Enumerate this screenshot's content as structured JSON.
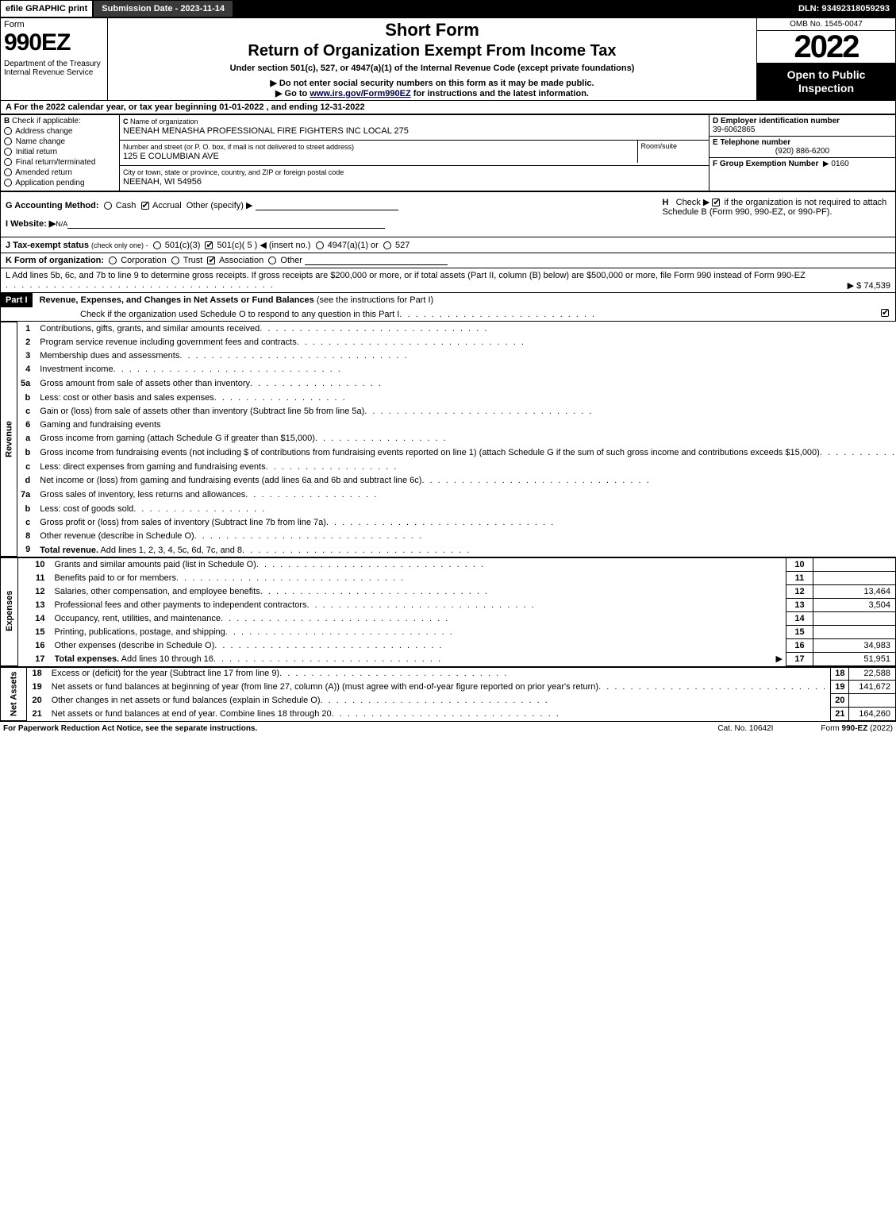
{
  "top": {
    "efile": "efile GRAPHIC print",
    "submission_label": "Submission Date - 2023-11-14",
    "dln": "DLN: 93492318059293"
  },
  "header": {
    "form_word": "Form",
    "form_num": "990EZ",
    "dept": "Department of the Treasury\nInternal Revenue Service",
    "short": "Short Form",
    "title": "Return of Organization Exempt From Income Tax",
    "subtitle1": "Under section 501(c), 527, or 4947(a)(1) of the Internal Revenue Code (except private foundations)",
    "subtitle2": "▶ Do not enter social security numbers on this form as it may be made public.",
    "subtitle3_pre": "▶ Go to ",
    "subtitle3_link": "www.irs.gov/Form990EZ",
    "subtitle3_post": " for instructions and the latest information.",
    "omb": "OMB No. 1545-0047",
    "year": "2022",
    "open": "Open to Public Inspection"
  },
  "rowA": "A  For the 2022 calendar year, or tax year beginning 01-01-2022  , and ending 12-31-2022",
  "secB": {
    "label": "B",
    "check_label": "Check if applicable:",
    "items": [
      "Address change",
      "Name change",
      "Initial return",
      "Final return/terminated",
      "Amended return",
      "Application pending"
    ]
  },
  "secC": {
    "c_label": "C",
    "name_lbl": "Name of organization",
    "name": "NEENAH MENASHA PROFESSIONAL FIRE FIGHTERS INC LOCAL 275",
    "street_lbl": "Number and street (or P. O. box, if mail is not delivered to street address)",
    "room_lbl": "Room/suite",
    "street": "125 E COLUMBIAN AVE",
    "city_lbl": "City or town, state or province, country, and ZIP or foreign postal code",
    "city": "NEENAH, WI  54956"
  },
  "secD": {
    "label": "D Employer identification number",
    "ein": "39-6062865",
    "e_label": "E Telephone number",
    "phone": "(920) 886-6200",
    "f_label": "F Group Exemption Number",
    "f_arrow": "▶",
    "f_val": "0160"
  },
  "rowG": {
    "label": "G Accounting Method:",
    "opts": [
      "Cash",
      "Accrual"
    ],
    "other": "Other (specify) ▶"
  },
  "rowH": {
    "label": "H",
    "text1": "Check ▶",
    "text2": "if the organization is not required to attach Schedule B (Form 990, 990-EZ, or 990-PF)."
  },
  "rowI": {
    "label": "I Website: ▶",
    "val": "N/A"
  },
  "rowJ": {
    "label": "J Tax-exempt status",
    "hint": "(check only one) -",
    "opts": [
      "501(c)(3)",
      "501(c)( 5 ) ◀ (insert no.)",
      "4947(a)(1) or",
      "527"
    ]
  },
  "rowK": {
    "label": "K Form of organization:",
    "opts": [
      "Corporation",
      "Trust",
      "Association",
      "Other"
    ]
  },
  "rowL": {
    "text": "L Add lines 5b, 6c, and 7b to line 9 to determine gross receipts. If gross receipts are $200,000 or more, or if total assets (Part II, column (B) below) are $500,000 or more, file Form 990 instead of Form 990-EZ",
    "amt": "▶ $ 74,539"
  },
  "part1": {
    "label": "Part I",
    "title": "Revenue, Expenses, and Changes in Net Assets or Fund Balances",
    "hint": "(see the instructions for Part I)",
    "check_line": "Check if the organization used Schedule O to respond to any question in this Part I"
  },
  "sections": {
    "revenue_label": "Revenue",
    "expenses_label": "Expenses",
    "netassets_label": "Net Assets"
  },
  "lines": [
    {
      "n": "1",
      "txt": "Contributions, gifts, grants, and similar amounts received",
      "box": "1",
      "amt": ""
    },
    {
      "n": "2",
      "txt": "Program service revenue including government fees and contracts",
      "box": "2",
      "amt": ""
    },
    {
      "n": "3",
      "txt": "Membership dues and assessments",
      "box": "3",
      "amt": "73,071"
    },
    {
      "n": "4",
      "txt": "Investment income",
      "box": "4",
      "amt": "1,468"
    },
    {
      "n": "5a",
      "txt": "Gross amount from sale of assets other than inventory",
      "sub": "5a",
      "subamt": ""
    },
    {
      "n": "b",
      "txt": "Less: cost or other basis and sales expenses",
      "sub": "5b",
      "subamt": ""
    },
    {
      "n": "c",
      "txt": "Gain or (loss) from sale of assets other than inventory (Subtract line 5b from line 5a)",
      "box": "5c",
      "amt": ""
    },
    {
      "n": "6",
      "txt": "Gaming and fundraising events",
      "header": true
    },
    {
      "n": "a",
      "txt": "Gross income from gaming (attach Schedule G if greater than $15,000)",
      "sub": "6a",
      "subamt": ""
    },
    {
      "n": "b",
      "txt": "Gross income from fundraising events (not including $                      of contributions from fundraising events reported on line 1) (attach Schedule G if the sum of such gross income and contributions exceeds $15,000)",
      "sub": "6b",
      "subamt": ""
    },
    {
      "n": "c",
      "txt": "Less: direct expenses from gaming and fundraising events",
      "sub": "6c",
      "subamt": ""
    },
    {
      "n": "d",
      "txt": "Net income or (loss) from gaming and fundraising events (add lines 6a and 6b and subtract line 6c)",
      "box": "6d",
      "amt": ""
    },
    {
      "n": "7a",
      "txt": "Gross sales of inventory, less returns and allowances",
      "sub": "7a",
      "subamt": ""
    },
    {
      "n": "b",
      "txt": "Less: cost of goods sold",
      "sub": "7b",
      "subamt": ""
    },
    {
      "n": "c",
      "txt": "Gross profit or (loss) from sales of inventory (Subtract line 7b from line 7a)",
      "box": "7c",
      "amt": ""
    },
    {
      "n": "8",
      "txt": "Other revenue (describe in Schedule O)",
      "box": "8",
      "amt": ""
    },
    {
      "n": "9",
      "txt": "Total revenue. Add lines 1, 2, 3, 4, 5c, 6d, 7c, and 8",
      "box": "9",
      "amt": "74,539",
      "bold": true,
      "arrow": true
    }
  ],
  "exp_lines": [
    {
      "n": "10",
      "txt": "Grants and similar amounts paid (list in Schedule O)",
      "box": "10",
      "amt": ""
    },
    {
      "n": "11",
      "txt": "Benefits paid to or for members",
      "box": "11",
      "amt": ""
    },
    {
      "n": "12",
      "txt": "Salaries, other compensation, and employee benefits",
      "box": "12",
      "amt": "13,464"
    },
    {
      "n": "13",
      "txt": "Professional fees and other payments to independent contractors",
      "box": "13",
      "amt": "3,504"
    },
    {
      "n": "14",
      "txt": "Occupancy, rent, utilities, and maintenance",
      "box": "14",
      "amt": ""
    },
    {
      "n": "15",
      "txt": "Printing, publications, postage, and shipping",
      "box": "15",
      "amt": ""
    },
    {
      "n": "16",
      "txt": "Other expenses (describe in Schedule O)",
      "box": "16",
      "amt": "34,983"
    },
    {
      "n": "17",
      "txt": "Total expenses. Add lines 10 through 16",
      "box": "17",
      "amt": "51,951",
      "bold": true,
      "arrow": true
    }
  ],
  "na_lines": [
    {
      "n": "18",
      "txt": "Excess or (deficit) for the year (Subtract line 17 from line 9)",
      "box": "18",
      "amt": "22,588"
    },
    {
      "n": "19",
      "txt": "Net assets or fund balances at beginning of year (from line 27, column (A)) (must agree with end-of-year figure reported on prior year's return)",
      "box": "19",
      "amt": "141,672"
    },
    {
      "n": "20",
      "txt": "Other changes in net assets or fund balances (explain in Schedule O)",
      "box": "20",
      "amt": ""
    },
    {
      "n": "21",
      "txt": "Net assets or fund balances at end of year. Combine lines 18 through 20",
      "box": "21",
      "amt": "164,260"
    }
  ],
  "footer": {
    "left": "For Paperwork Reduction Act Notice, see the separate instructions.",
    "mid": "Cat. No. 10642I",
    "right_pre": "Form ",
    "right_b": "990-EZ",
    "right_post": " (2022)"
  },
  "colors": {
    "black": "#000000",
    "white": "#ffffff",
    "grey": "#c8c8c8",
    "dark_btn": "#3a3a3a"
  }
}
